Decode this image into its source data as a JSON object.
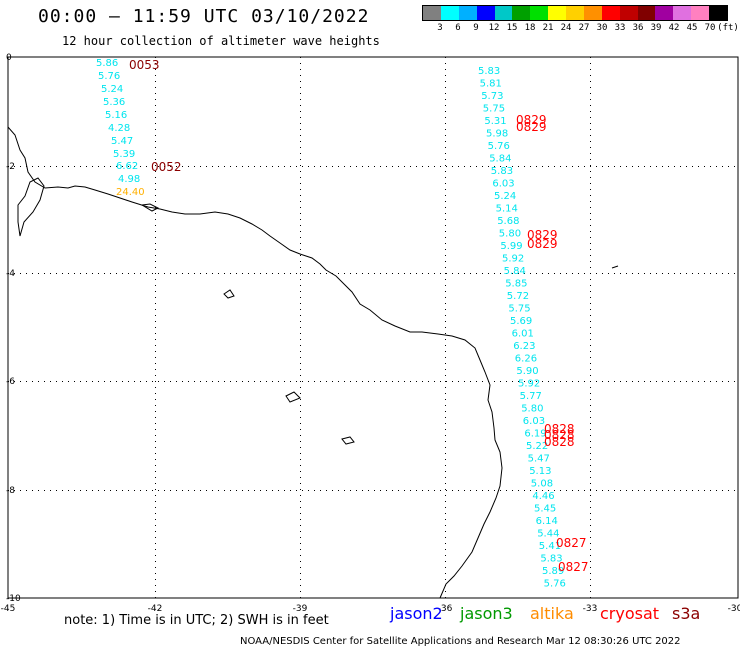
{
  "title": "00:00 — 11:59 UTC 03/10/2022",
  "subtitle": "12 hour collection of altimeter wave heights",
  "colors": {
    "coast": "#000000",
    "grid": "#000000",
    "swh": "#00e5ee",
    "swh_high": "#ffb000",
    "time_old": "#8b0000",
    "time_new": "#ff0000",
    "jason2": "#0000ff",
    "jason3": "#009900",
    "altika": "#ff8c00",
    "cryosat": "#ff0000",
    "s3a": "#8b0000"
  },
  "scale": {
    "labels": [
      "3",
      "6",
      "9",
      "12",
      "15",
      "18",
      "21",
      "24",
      "27",
      "30",
      "33",
      "36",
      "39",
      "42",
      "45",
      "70",
      "(ft)"
    ],
    "colors": [
      "#808080",
      "#00ffff",
      "#00b0ff",
      "#0000ff",
      "#00c8c8",
      "#00a000",
      "#00e000",
      "#ffff00",
      "#ffd000",
      "#ff9000",
      "#ff0000",
      "#c00000",
      "#800000",
      "#a000a0",
      "#e070e0",
      "#ff80c0",
      "#000000"
    ]
  },
  "axes": {
    "x_ticks": [
      "-45",
      "-42",
      "-39",
      "-36",
      "-33",
      "-30"
    ],
    "y_ticks": [
      "0",
      "-2",
      "-4",
      "-6",
      "-8",
      "-10"
    ]
  },
  "swh_values": [
    [
      "5.86",
      "5.76",
      "5.24",
      "5.36",
      "5.16",
      "4.28",
      "5.47",
      "5.39",
      "6.62",
      "4.98",
      "24.40"
    ],
    [
      "5.83",
      "5.81",
      "5.73",
      "5.75",
      "5.31",
      "5.98",
      "5.76",
      "5.84",
      "5.83",
      "6.03",
      "5.24",
      "5.14",
      "5.68",
      "5.80",
      "5.99",
      "5.92",
      "5.84",
      "5.85",
      "5.72",
      "5.75",
      "5.69",
      "6.01",
      "6.23",
      "6.26",
      "5.90",
      "5.92",
      "5.77",
      "5.80",
      "6.03",
      "6.19",
      "5.22",
      "5.47",
      "5.13",
      "5.08",
      "4.46",
      "5.45",
      "6.14",
      "5.44",
      "5.41",
      "5.83",
      "5.89",
      "5.76"
    ]
  ],
  "pass_times": [
    "0053",
    "0052",
    "0829",
    "0829",
    "0829",
    "0829",
    "0828",
    "0828",
    "0828",
    "0827",
    "0827"
  ],
  "note": "note: 1) Time is in UTC; 2) SWH is in feet",
  "legend": {
    "jason2": "jason2",
    "jason3": "jason3",
    "altika": "altika",
    "cryosat": "cryosat",
    "s3a": "s3a"
  },
  "footer": "NOAA/NESDIS Center for Satellite Applications and Research   Mar 12 08:30:26 UTC 2022"
}
